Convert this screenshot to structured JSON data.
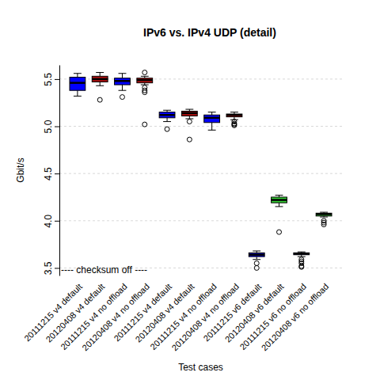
{
  "chart_data": {
    "type": "box",
    "title": "IPv6 vs. IPv4 UDP (detail)",
    "x_label": "Test cases",
    "y_label": "Gbit/s",
    "annotation": "---- checksum off ----",
    "categories": [
      "20111215 v4 default",
      "20120408 v4 default",
      "20111215 v4 no offload",
      "20120408 v4 no offload",
      "20111215 v4 default",
      "20120408 v4 default",
      "20111215 v4 no offload",
      "20120408 v4 no offload",
      "20111215 v6 default",
      "20120408 v6 default",
      "20111215 v6 no offload",
      "20120408 v6 no offload"
    ],
    "colors": [
      "#0000ff",
      "#b01010",
      "#0000ff",
      "#b01010",
      "#0000ff",
      "#b01010",
      "#0000ff",
      "#b01010",
      "#0000ff",
      "#33cc33",
      "#0000ff",
      "#33cc33"
    ],
    "stats": [
      {
        "low": 5.32,
        "q1": 5.38,
        "median": 5.46,
        "q3": 5.52,
        "high": 5.56,
        "outliers": []
      },
      {
        "low": 5.43,
        "q1": 5.47,
        "median": 5.5,
        "q3": 5.53,
        "high": 5.57,
        "outliers": [
          5.28
        ]
      },
      {
        "low": 5.38,
        "q1": 5.44,
        "median": 5.48,
        "q3": 5.51,
        "high": 5.56,
        "outliers": [
          5.31
        ]
      },
      {
        "low": 5.44,
        "q1": 5.46,
        "median": 5.49,
        "q3": 5.51,
        "high": 5.53,
        "outliers": [
          5.57,
          5.41,
          5.38,
          5.36,
          5.02
        ]
      },
      {
        "low": 5.05,
        "q1": 5.09,
        "median": 5.12,
        "q3": 5.15,
        "high": 5.17,
        "outliers": [
          4.97
        ]
      },
      {
        "low": 5.08,
        "q1": 5.11,
        "median": 5.14,
        "q3": 5.16,
        "high": 5.18,
        "outliers": [
          5.05,
          4.86
        ]
      },
      {
        "low": 4.96,
        "q1": 5.04,
        "median": 5.09,
        "q3": 5.12,
        "high": 5.15,
        "outliers": []
      },
      {
        "low": 5.07,
        "q1": 5.1,
        "median": 5.12,
        "q3": 5.13,
        "high": 5.15,
        "outliers": [
          5.05,
          5.03,
          5.02,
          5.01
        ]
      },
      {
        "low": 3.59,
        "q1": 3.62,
        "median": 3.64,
        "q3": 3.66,
        "high": 3.68,
        "outliers": [
          3.55,
          3.5
        ]
      },
      {
        "low": 4.15,
        "q1": 4.19,
        "median": 4.22,
        "q3": 4.25,
        "high": 4.27,
        "outliers": [
          3.88
        ]
      },
      {
        "low": 3.62,
        "q1": 3.64,
        "median": 3.65,
        "q3": 3.66,
        "high": 3.67,
        "outliers": [
          3.59,
          3.57,
          3.55,
          3.52,
          3.51
        ]
      },
      {
        "low": 4.04,
        "q1": 4.05,
        "median": 4.07,
        "q3": 4.08,
        "high": 4.09,
        "outliers": [
          4.0,
          3.98,
          3.96
        ]
      }
    ],
    "ylim": [
      3.42,
      5.65
    ],
    "yticks": [
      3.5,
      {
        "value": 4,
        "label": "4.0"
      },
      4.5,
      {
        "value": 5,
        "label": "5.0"
      },
      5.5
    ],
    "grid": true
  }
}
